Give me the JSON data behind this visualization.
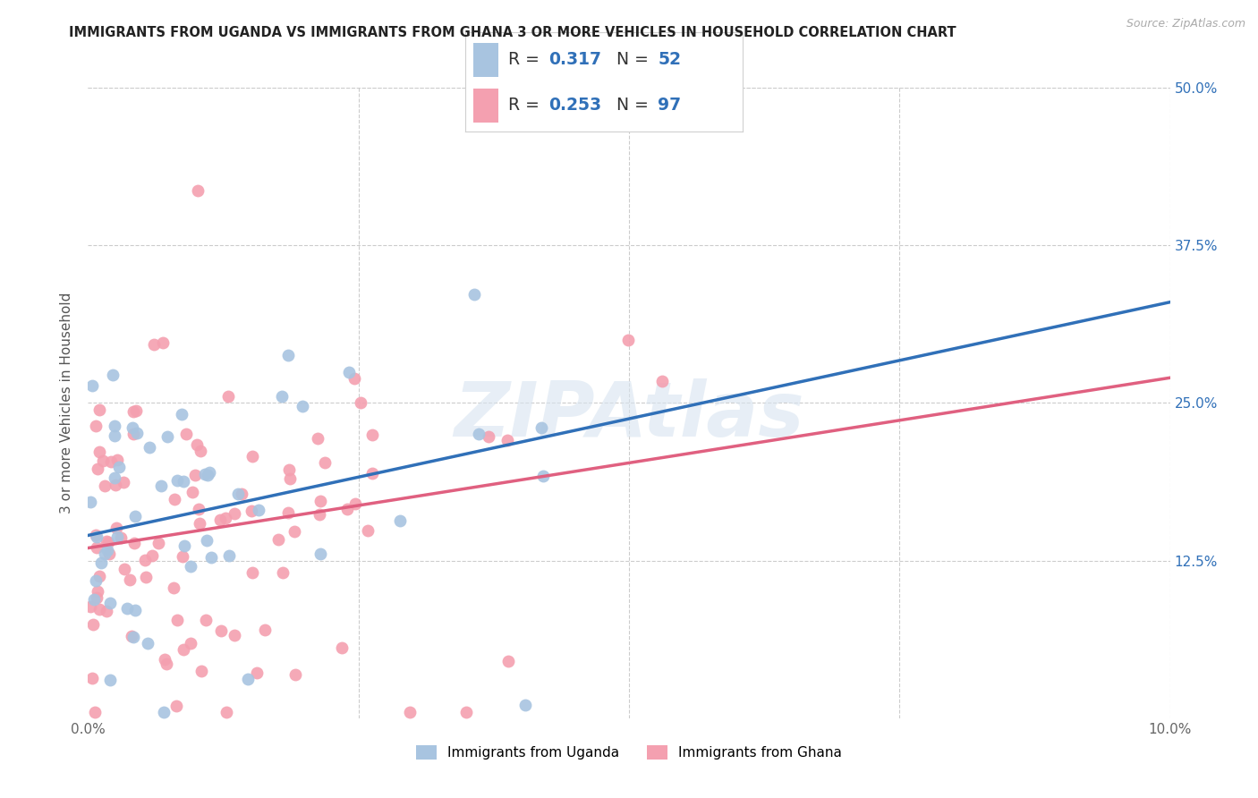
{
  "title": "IMMIGRANTS FROM UGANDA VS IMMIGRANTS FROM GHANA 3 OR MORE VEHICLES IN HOUSEHOLD CORRELATION CHART",
  "source": "Source: ZipAtlas.com",
  "ylabel": "3 or more Vehicles in Household",
  "x_min": 0.0,
  "x_max": 10.0,
  "y_min": 0.0,
  "y_max": 50.0,
  "y_ticks_right": [
    12.5,
    25.0,
    37.5,
    50.0
  ],
  "y_tick_labels_right": [
    "12.5%",
    "25.0%",
    "37.5%",
    "50.0%"
  ],
  "grid_color": "#cccccc",
  "background_color": "#ffffff",
  "uganda_color": "#a8c4e0",
  "ghana_color": "#f4a0b0",
  "uganda_line_color": "#3070b8",
  "ghana_line_color": "#e06080",
  "uganda_R": 0.317,
  "uganda_N": 52,
  "ghana_R": 0.253,
  "ghana_N": 97,
  "legend_label_uganda": "Immigrants from Uganda",
  "legend_label_ghana": "Immigrants from Ghana",
  "watermark": "ZIPAtlas",
  "reg_blue_x0": 0.0,
  "reg_blue_y0": 14.5,
  "reg_blue_x1": 10.0,
  "reg_blue_y1": 33.0,
  "reg_pink_x0": 0.0,
  "reg_pink_y0": 13.5,
  "reg_pink_x1": 10.0,
  "reg_pink_y1": 27.0
}
